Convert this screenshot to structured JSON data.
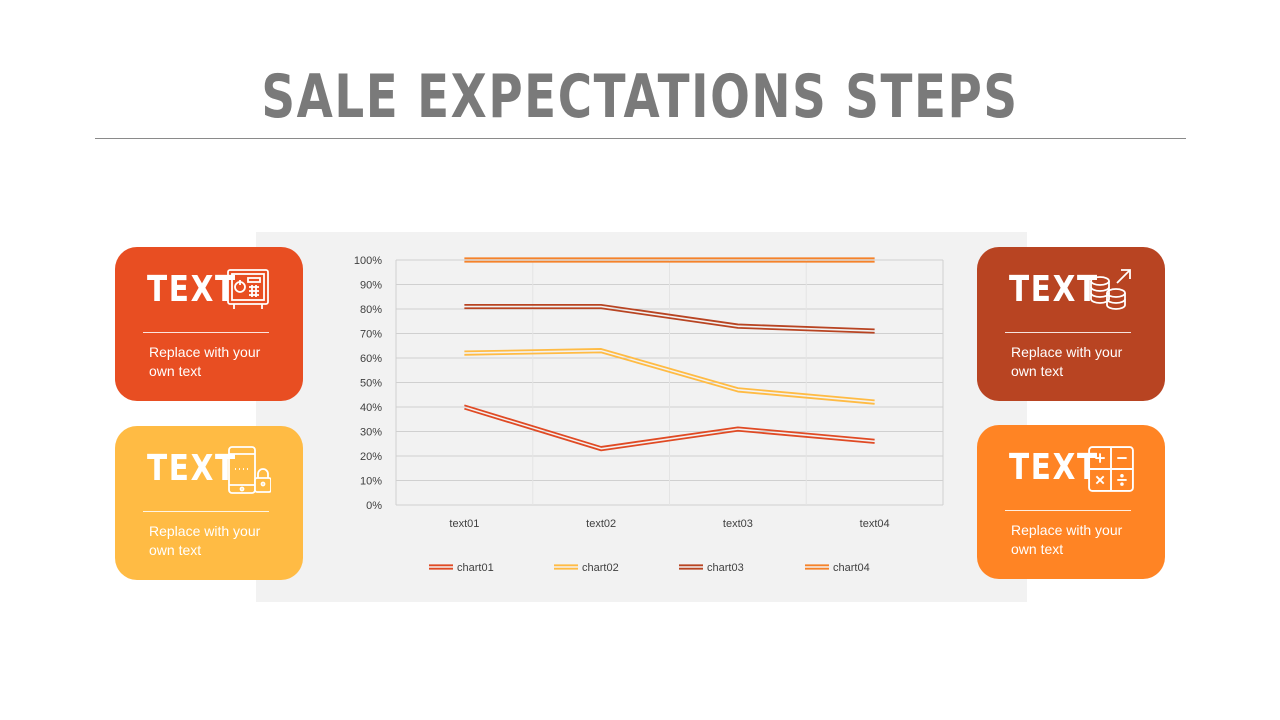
{
  "title": "SALE EXPECTATIONS STEPS",
  "cards": {
    "top_left": {
      "heading": "TEXT",
      "text": "Replace with your own text",
      "icon": "safe-icon",
      "color": "#e84e22"
    },
    "bottom_left": {
      "heading": "TEXT",
      "text": "Replace with your own text",
      "icon": "mobile-lock-icon",
      "color": "#ffbb44"
    },
    "top_right": {
      "heading": "TEXT",
      "text": "Replace with your own text",
      "icon": "coins-growth-icon",
      "color": "#b84422"
    },
    "bottom_right": {
      "heading": "TEXT",
      "text": "Replace with your own text",
      "icon": "calculator-icon",
      "color": "#ff8424"
    }
  },
  "chart_data": {
    "type": "line",
    "categories": [
      "text01",
      "text02",
      "text03",
      "text04"
    ],
    "series": [
      {
        "name": "chart01",
        "values": [
          40,
          23,
          31,
          26
        ],
        "color": "#e04a24"
      },
      {
        "name": "chart02",
        "values": [
          62,
          63,
          47,
          42
        ],
        "color": "#ffbb44"
      },
      {
        "name": "chart03",
        "values": [
          81,
          81,
          73,
          71
        ],
        "color": "#b84422"
      },
      {
        "name": "chart04",
        "values": [
          100,
          100,
          100,
          100
        ],
        "color": "#f5822a"
      }
    ],
    "ylim": [
      0,
      100
    ],
    "yticks": [
      "0%",
      "10%",
      "20%",
      "30%",
      "40%",
      "50%",
      "60%",
      "70%",
      "80%",
      "90%",
      "100%"
    ],
    "grid": true,
    "legend_position": "bottom",
    "line_style": "double"
  }
}
